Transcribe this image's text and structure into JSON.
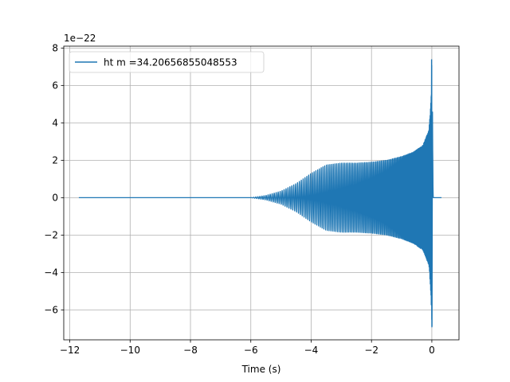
{
  "chart_data": {
    "type": "line",
    "title": "",
    "xlabel": "Time (s)",
    "ylabel": "",
    "y_offset_text": "1e−22",
    "xlim": [
      -12.2,
      0.9
    ],
    "ylim": [
      -7.6,
      8.1
    ],
    "x_ticks": [
      -12,
      -10,
      -8,
      -6,
      -4,
      -2,
      0
    ],
    "x_tick_labels": [
      "−12",
      "−10",
      "−8",
      "−6",
      "−4",
      "−2",
      "0"
    ],
    "y_ticks": [
      -6,
      -4,
      -2,
      0,
      2,
      4,
      6,
      8
    ],
    "y_tick_labels": [
      "−6",
      "−4",
      "−2",
      "0",
      "2",
      "4",
      "6",
      "8"
    ],
    "grid": true,
    "legend_position": "upper-left",
    "line_color": "#1f77b4",
    "series": [
      {
        "name": "ht m =34.20656855048553",
        "description_points": {
          "x": [
            -11.7,
            -6.0,
            -5.5,
            -5.0,
            -4.5,
            -4.0,
            -3.5,
            -3.0,
            -2.5,
            -2.0,
            -1.5,
            -1.0,
            -0.6,
            -0.3,
            -0.1,
            -0.03,
            0.0,
            0.02,
            0.05,
            0.32
          ],
          "envelope": [
            0.0,
            0.0,
            0.12,
            0.35,
            0.75,
            1.3,
            1.75,
            1.85,
            1.85,
            1.9,
            2.0,
            2.2,
            2.45,
            2.8,
            3.6,
            5.2,
            7.2,
            4.5,
            0.0,
            0.0
          ]
        }
      }
    ]
  }
}
